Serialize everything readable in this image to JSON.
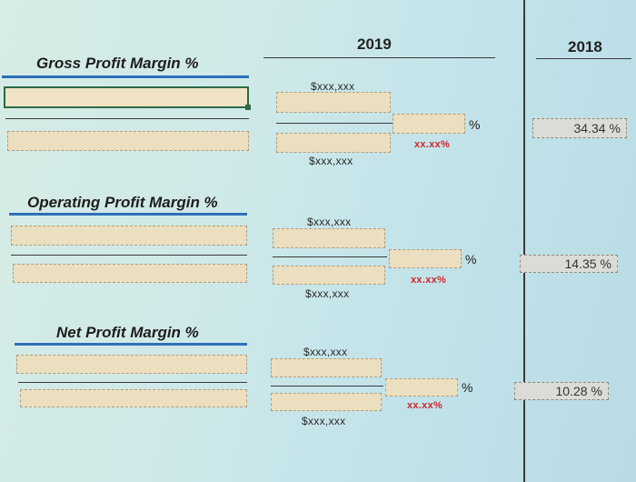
{
  "headers": {
    "col_2019": "2019",
    "col_2018": "2018"
  },
  "sections": [
    {
      "title": "Gross Profit Margin %",
      "numerator_hint": "$xxx,xxx",
      "denominator_hint": "$xxx,xxx",
      "ratio_hint": "xx.xx%",
      "pct_sign": "%",
      "prior_year_value": "34.34",
      "prior_year_unit": "%"
    },
    {
      "title": "Operating Profit Margin %",
      "numerator_hint": "$xxx,xxx",
      "denominator_hint": "$xxx,xxx",
      "ratio_hint": "xx.xx%",
      "pct_sign": "%",
      "prior_year_value": "14.35",
      "prior_year_unit": "%"
    },
    {
      "title": "Net Profit Margin %",
      "numerator_hint": "$xxx,xxx",
      "denominator_hint": "$xxx,xxx",
      "ratio_hint": "xx.xx%",
      "pct_sign": "%",
      "prior_year_value": "10.28",
      "prior_year_unit": "%"
    }
  ]
}
